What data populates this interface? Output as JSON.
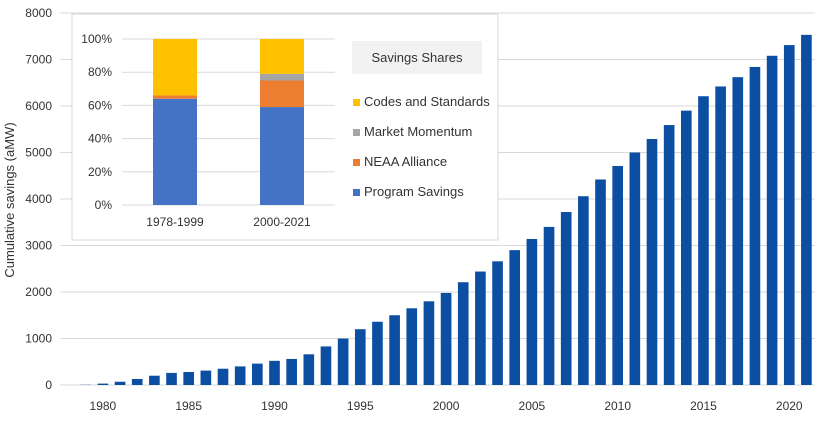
{
  "chart_data": [
    {
      "type": "bar",
      "ylabel": "Cumulative savings (aMW)",
      "xlabel": "",
      "ylim": [
        0,
        8000
      ],
      "yticks": [
        "0",
        "1000",
        "2000",
        "3000",
        "4000",
        "5000",
        "6000",
        "7000",
        "8000"
      ],
      "xticks": [
        "1980",
        "1985",
        "1990",
        "1995",
        "2000",
        "2005",
        "2010",
        "2015",
        "2020"
      ],
      "grid": true,
      "color": "#0b4ea2",
      "categories": [
        "1978",
        "1979",
        "1980",
        "1981",
        "1982",
        "1983",
        "1984",
        "1985",
        "1986",
        "1987",
        "1988",
        "1989",
        "1990",
        "1991",
        "1992",
        "1993",
        "1994",
        "1995",
        "1996",
        "1997",
        "1998",
        "1999",
        "2000",
        "2001",
        "2002",
        "2003",
        "2004",
        "2005",
        "2006",
        "2007",
        "2008",
        "2009",
        "2010",
        "2011",
        "2012",
        "2013",
        "2014",
        "2015",
        "2016",
        "2017",
        "2018",
        "2019",
        "2020",
        "2021"
      ],
      "values": [
        0,
        5,
        30,
        70,
        130,
        200,
        260,
        280,
        310,
        350,
        400,
        460,
        520,
        560,
        660,
        830,
        1000,
        1200,
        1360,
        1500,
        1650,
        1800,
        1980,
        2210,
        2440,
        2660,
        2900,
        3140,
        3400,
        3720,
        4060,
        4420,
        4710,
        5000,
        5290,
        5590,
        5900,
        6210,
        6420,
        6620,
        6840,
        7080,
        7310,
        7530
      ]
    },
    {
      "type": "bar",
      "stacked": true,
      "title": "Savings Shares",
      "categories": [
        "1978-1999",
        "2000-2021"
      ],
      "ylim": [
        0,
        100
      ],
      "yticks": [
        "0%",
        "20%",
        "40%",
        "60%",
        "80%",
        "100%"
      ],
      "legend_placement": "right",
      "series": [
        {
          "name": "Program Savings",
          "color": "#4472c4",
          "values": [
            64,
            59
          ]
        },
        {
          "name": "NEAA Alliance",
          "color": "#ed7d31",
          "values": [
            2,
            16
          ]
        },
        {
          "name": "Market Momentum",
          "color": "#a5a5a5",
          "values": [
            0,
            4
          ]
        },
        {
          "name": "Codes and Standards",
          "color": "#ffc000",
          "values": [
            34,
            21
          ]
        }
      ],
      "legend_order": [
        "Codes and Standards",
        "Market Momentum",
        "NEAA Alliance",
        "Program Savings"
      ]
    }
  ]
}
